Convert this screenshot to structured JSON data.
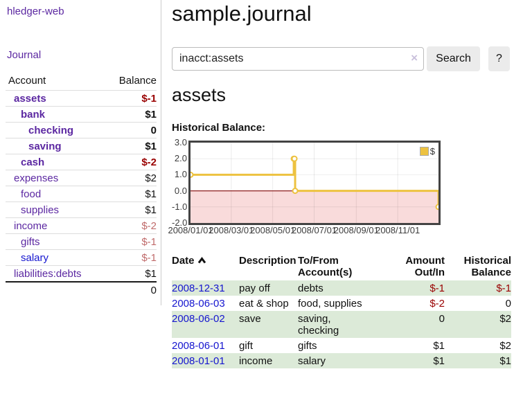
{
  "app": {
    "brand": "hledger-web"
  },
  "sidebar": {
    "nav": {
      "journal": "Journal"
    },
    "columns": {
      "account": "Account",
      "balance": "Balance"
    },
    "rows": [
      {
        "account": "assets",
        "balance": "$-1",
        "level": 1,
        "current": true,
        "balance_class": "neg-strong",
        "link": "purple"
      },
      {
        "account": "bank",
        "balance": "$1",
        "level": 2,
        "current": true,
        "balance_class": "",
        "link": "purple"
      },
      {
        "account": "checking",
        "balance": "0",
        "level": 3,
        "current": true,
        "balance_class": "",
        "link": "purple"
      },
      {
        "account": "saving",
        "balance": "$1",
        "level": 3,
        "current": true,
        "balance_class": "",
        "link": "purple"
      },
      {
        "account": "cash",
        "balance": "$-2",
        "level": 2,
        "current": true,
        "balance_class": "neg-strong",
        "link": "purple"
      },
      {
        "account": "expenses",
        "balance": "$2",
        "level": 1,
        "current": false,
        "balance_class": "",
        "link": "purple"
      },
      {
        "account": "food",
        "balance": "$1",
        "level": 2,
        "current": false,
        "balance_class": "",
        "link": "purple"
      },
      {
        "account": "supplies",
        "balance": "$1",
        "level": 2,
        "current": false,
        "balance_class": "",
        "link": "purple"
      },
      {
        "account": "income",
        "balance": "$-2",
        "level": 1,
        "current": false,
        "balance_class": "neg-soft",
        "link": "purple"
      },
      {
        "account": "gifts",
        "balance": "$-1",
        "level": 2,
        "current": false,
        "balance_class": "neg-soft",
        "link": "purple"
      },
      {
        "account": "salary",
        "balance": "$-1",
        "level": 2,
        "current": false,
        "balance_class": "neg-soft",
        "link": "blue"
      },
      {
        "account": "liabilities:debts",
        "balance": "$1",
        "level": 1,
        "current": false,
        "balance_class": "",
        "link": "purple"
      }
    ],
    "total": "0"
  },
  "header": {
    "title": "sample.journal"
  },
  "search": {
    "value": "inacct:assets",
    "clear_icon": "×",
    "button": "Search",
    "help_button": "?"
  },
  "main": {
    "heading": "assets",
    "chart_label": "Historical Balance:"
  },
  "chart_data": {
    "type": "line",
    "style": "step",
    "title": "Historical Balance:",
    "series": [
      {
        "name": "$",
        "points": [
          [
            "2008-01-01",
            1
          ],
          [
            "2008-06-01",
            2
          ],
          [
            "2008-06-02",
            2
          ],
          [
            "2008-06-03",
            0
          ],
          [
            "2008-12-31",
            -1
          ]
        ]
      }
    ],
    "x_range": [
      "2008-01-01",
      "2008-12-31"
    ],
    "ylim": [
      -2,
      3
    ],
    "y_ticks": [
      "3.0",
      "2.0",
      "1.0",
      "0.0",
      "-1.0",
      "-2.0"
    ],
    "x_ticks": [
      "2008/01/01",
      "2008/03/01",
      "2008/05/01",
      "2008/07/01",
      "2008/09/01",
      "2008/11/01"
    ],
    "legend": {
      "position": "top-right",
      "entries": [
        "$"
      ]
    },
    "grid": true,
    "colors": {
      "line": "#EDC240",
      "marker_fill": "#ffffff",
      "negative_fill": "#f9dbdb",
      "zero_line": "#8d1f1f",
      "border": "#434343"
    }
  },
  "table": {
    "headers": [
      "Date",
      "Description",
      "To/From Account(s)",
      "Amount Out/In",
      "Historical Balance"
    ],
    "rows": [
      {
        "date": "2008-12-31",
        "description": "pay off",
        "accounts": "debts",
        "amount": "$-1",
        "amount_class": "neg-strong",
        "balance": "$-1",
        "balance_class": "neg-strong"
      },
      {
        "date": "2008-06-03",
        "description": "eat & shop",
        "accounts": "food, supplies",
        "amount": "$-2",
        "amount_class": "neg-strong",
        "balance": "0",
        "balance_class": ""
      },
      {
        "date": "2008-06-02",
        "description": "save",
        "accounts": "saving,\nchecking",
        "amount": "0",
        "amount_class": "",
        "balance": "$2",
        "balance_class": ""
      },
      {
        "date": "2008-06-01",
        "description": "gift",
        "accounts": "gifts",
        "amount": "$1",
        "amount_class": "",
        "balance": "$2",
        "balance_class": ""
      },
      {
        "date": "2008-01-01",
        "description": "income",
        "accounts": "salary",
        "amount": "$1",
        "amount_class": "",
        "balance": "$1",
        "balance_class": ""
      }
    ]
  },
  "colors": {
    "link_purple": "#5b27a1",
    "link_blue": "#1515cf",
    "negative_strong": "#990000",
    "negative_soft": "#c06b6b",
    "row_stripe": "#dcead8"
  }
}
